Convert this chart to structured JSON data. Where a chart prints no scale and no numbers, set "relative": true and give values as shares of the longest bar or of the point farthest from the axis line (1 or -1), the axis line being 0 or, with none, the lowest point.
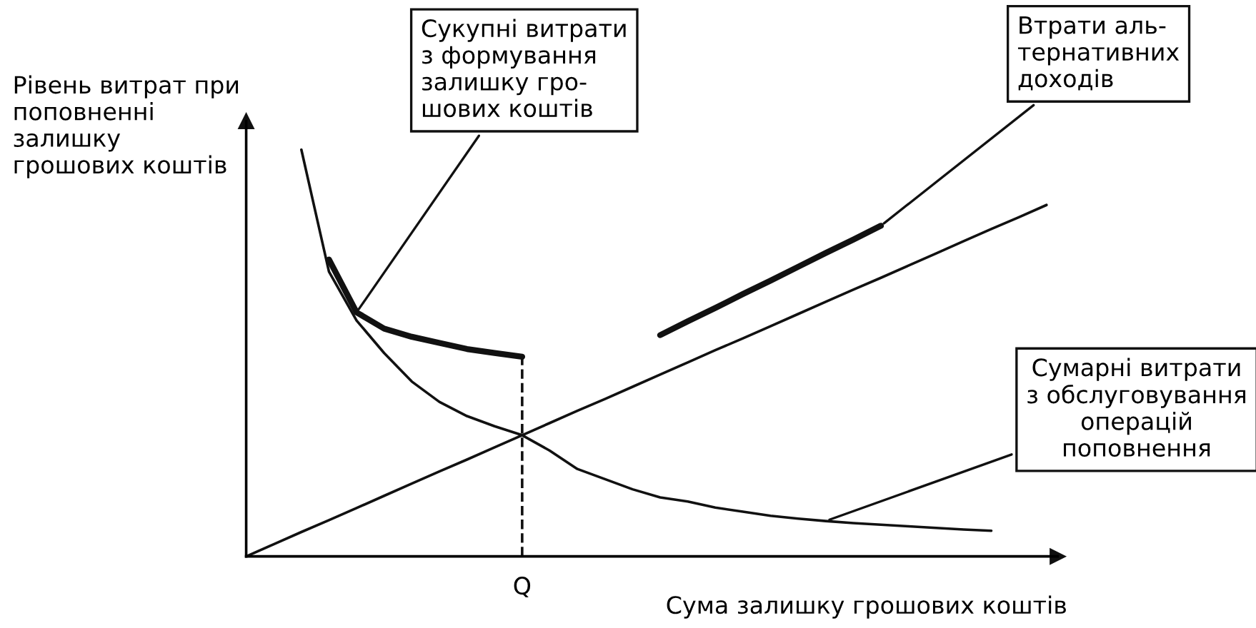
{
  "chart_data": {
    "type": "line",
    "relative": true,
    "xlabel": "Сума залишку грошових коштів",
    "ylabel": "Рівень витрат при поповненні залишку грошових коштів",
    "categories": [
      null,
      null,
      null,
      null,
      null,
      null,
      null,
      null,
      null,
      null,
      null,
      null,
      null,
      null,
      null,
      null,
      null,
      null,
      null,
      null,
      null,
      null,
      null,
      null,
      null,
      null,
      null,
      null,
      null,
      null
    ],
    "series": [
      {
        "color": "#111111",
        "values": [
          0,
          0.03,
          0.06,
          0.089,
          0.119,
          0.149,
          0.179,
          0.209,
          0.238,
          0.268,
          0.298,
          0.328,
          0.358,
          0.387,
          0.417,
          0.447,
          0.477,
          0.507,
          0.536,
          0.566,
          0.596,
          0.626,
          0.656,
          0.685,
          0.715,
          0.745,
          0.775,
          0.805,
          0.834,
          0.864
        ]
      },
      {
        "color": "#111111",
        "values": [
          null,
          null,
          1.0,
          0.7,
          0.58,
          0.5,
          0.43,
          0.38,
          0.345,
          0.32,
          0.298,
          0.26,
          0.215,
          0.19,
          0.165,
          0.145,
          0.135,
          0.12,
          0.11,
          0.1,
          0.093,
          0.087,
          0.082,
          0.078,
          0.074,
          0.07,
          0.066,
          0.063,
          null,
          null
        ]
      },
      {
        "color": "#111111",
        "values": [
          null,
          null,
          null,
          0.73,
          0.6,
          0.56,
          0.54,
          0.525,
          0.51,
          0.5,
          0.491,
          null,
          null,
          null,
          null,
          null,
          null,
          null,
          null,
          null,
          null,
          null,
          null,
          null,
          null,
          null,
          null,
          null,
          null,
          null
        ]
      },
      {
        "color": "#111111",
        "values": [
          null,
          null,
          null,
          null,
          null,
          null,
          null,
          null,
          null,
          null,
          null,
          null,
          null,
          null,
          null,
          0.544,
          0.578,
          0.611,
          0.645,
          0.678,
          0.712,
          0.746,
          0.779,
          0.813,
          null,
          null,
          null,
          null,
          null,
          null
        ]
      }
    ],
    "annotations": [
      "Сукупні витрати\nз формування\nзалишку гро-\nшових коштів",
      "Втрати аль-\nтернативних\nдоходів",
      "Сумарні витрати\nз обслуговування\nоперацій\nпоповнення",
      "Q"
    ],
    "marker": "none",
    "line_style": "solid"
  }
}
